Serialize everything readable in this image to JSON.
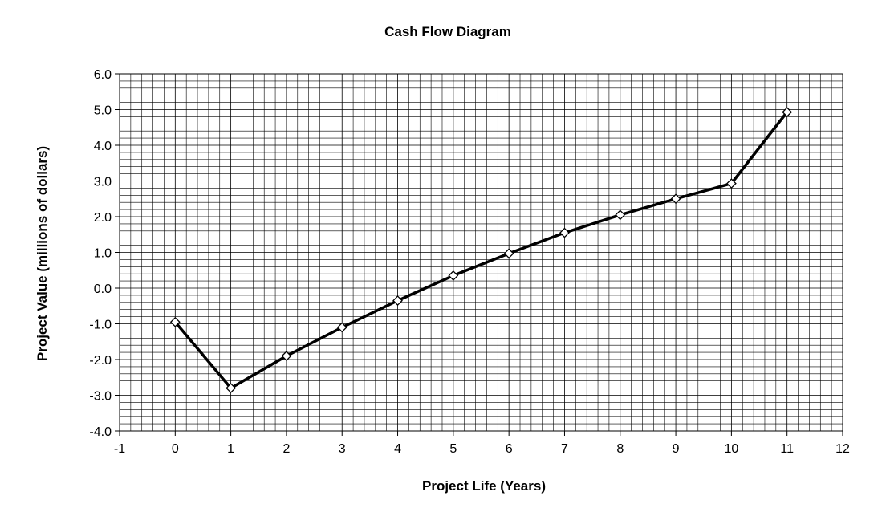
{
  "chart_data": {
    "type": "line",
    "title": "Cash Flow Diagram",
    "xlabel": "Project Life (Years)",
    "ylabel": "Project Value (millions of dollars)",
    "xlim": [
      -1,
      12
    ],
    "ylim": [
      -4.0,
      6.0
    ],
    "x_ticks": [
      -1,
      0,
      1,
      2,
      3,
      4,
      5,
      6,
      7,
      8,
      9,
      10,
      11,
      12
    ],
    "y_ticks": [
      -4.0,
      -3.0,
      -2.0,
      -1.0,
      0.0,
      1.0,
      2.0,
      3.0,
      4.0,
      5.0,
      6.0
    ],
    "x_tick_labels": [
      "-1",
      "0",
      "1",
      "2",
      "3",
      "4",
      "5",
      "6",
      "7",
      "8",
      "9",
      "10",
      "11",
      "12"
    ],
    "y_tick_labels": [
      "-4.0",
      "-3.0",
      "-2.0",
      "-1.0",
      "0.0",
      "1.0",
      "2.0",
      "3.0",
      "4.0",
      "5.0",
      "6.0"
    ],
    "grid": true,
    "grid_minor_x_step": 0.2,
    "grid_minor_y_step": 0.2,
    "legend": "none",
    "line_color": "#000000",
    "marker": "diamond-open",
    "series": [
      {
        "x": [
          0,
          1,
          2,
          3,
          4,
          5,
          6,
          7,
          8,
          9,
          10,
          11
        ],
        "values": [
          -0.95,
          -2.8,
          -1.9,
          -1.1,
          -0.35,
          0.35,
          0.97,
          1.55,
          2.05,
          2.5,
          2.93,
          4.93
        ]
      }
    ]
  }
}
